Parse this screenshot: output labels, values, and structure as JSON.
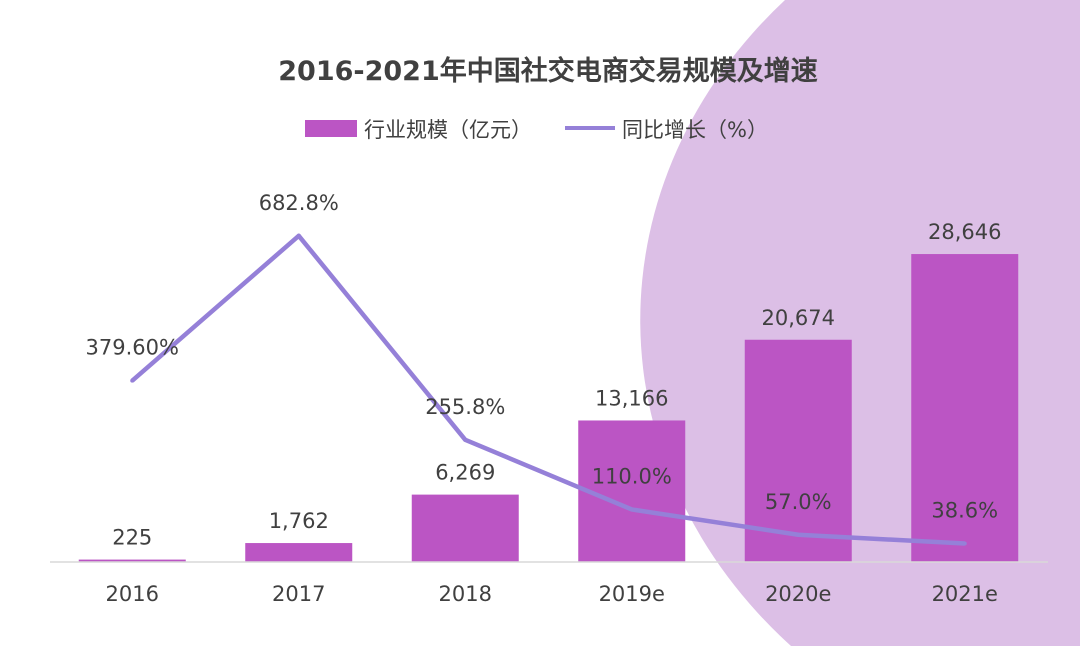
{
  "chart_data": {
    "type": "bar+line",
    "title": "2016-2021年中国社交电商交易规模及增速",
    "categories": [
      "2016",
      "2017",
      "2018",
      "2019e",
      "2020e",
      "2021e"
    ],
    "series": [
      {
        "name": "行业规模（亿元）",
        "type": "bar",
        "values": [
          225,
          1762,
          6269,
          13166,
          20674,
          28646
        ],
        "labels": [
          "225",
          "1,762",
          "6,269",
          "13,166",
          "20,674",
          "28,646"
        ],
        "color": "#bb55c4"
      },
      {
        "name": "同比增长（%）",
        "type": "line",
        "values": [
          379.6,
          682.8,
          255.8,
          110.0,
          57.0,
          38.6
        ],
        "labels": [
          "379.60%",
          "682.8%",
          "255.8%",
          "110.0%",
          "57.0%",
          "38.6%"
        ],
        "color": "#9580d8"
      }
    ],
    "ylim_bar": [
      0,
      40000
    ],
    "ylim_line": [
      0,
      900
    ],
    "legend": "top",
    "grid": false,
    "background_shape_color": "#dcbfe6"
  }
}
